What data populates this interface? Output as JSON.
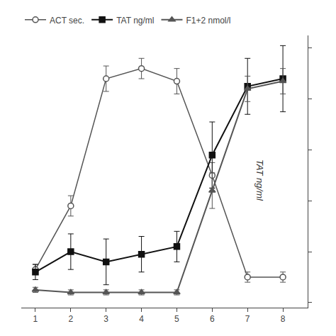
{
  "chart_data": {
    "type": "line",
    "x": [
      1,
      2,
      3,
      4,
      5,
      6,
      7,
      8
    ],
    "series": [
      {
        "name": "ACT sec.",
        "color": "#555555",
        "marker": "circle-open",
        "values": [
          0.13,
          0.38,
          0.88,
          0.92,
          0.87,
          0.5,
          0.1,
          0.1
        ],
        "errors": [
          0.02,
          0.04,
          0.05,
          0.04,
          0.05,
          0.05,
          0.02,
          0.02
        ]
      },
      {
        "name": "TAT ng/ml",
        "color": "#111111",
        "marker": "square",
        "values": [
          0.12,
          0.2,
          0.16,
          0.19,
          0.22,
          0.58,
          0.85,
          0.88
        ],
        "errors": [
          0.03,
          0.07,
          0.09,
          0.07,
          0.06,
          0.13,
          0.11,
          0.13
        ]
      },
      {
        "name": "F1+2 nmol/l",
        "color": "#555555",
        "marker": "triangle-up",
        "values": [
          0.05,
          0.04,
          0.04,
          0.04,
          0.04,
          0.44,
          0.84,
          0.87
        ],
        "errors": [
          0.01,
          0.01,
          0.01,
          0.01,
          0.01,
          0.07,
          0.05,
          0.05
        ]
      }
    ],
    "xlim": [
      0.6,
      8.7
    ],
    "xticks": [
      1,
      2,
      3,
      4,
      5,
      6,
      7,
      8
    ],
    "ylim": [
      -0.02,
      1.05
    ],
    "yticks": [
      0,
      0.2,
      0.4,
      0.6,
      0.8,
      1
    ],
    "tick_labels": "x",
    "grid": false,
    "legend": "upper left",
    "annotations": [
      {
        "text": "TAT ng/ml",
        "x": 7.35,
        "y": 0.48
      }
    ]
  }
}
